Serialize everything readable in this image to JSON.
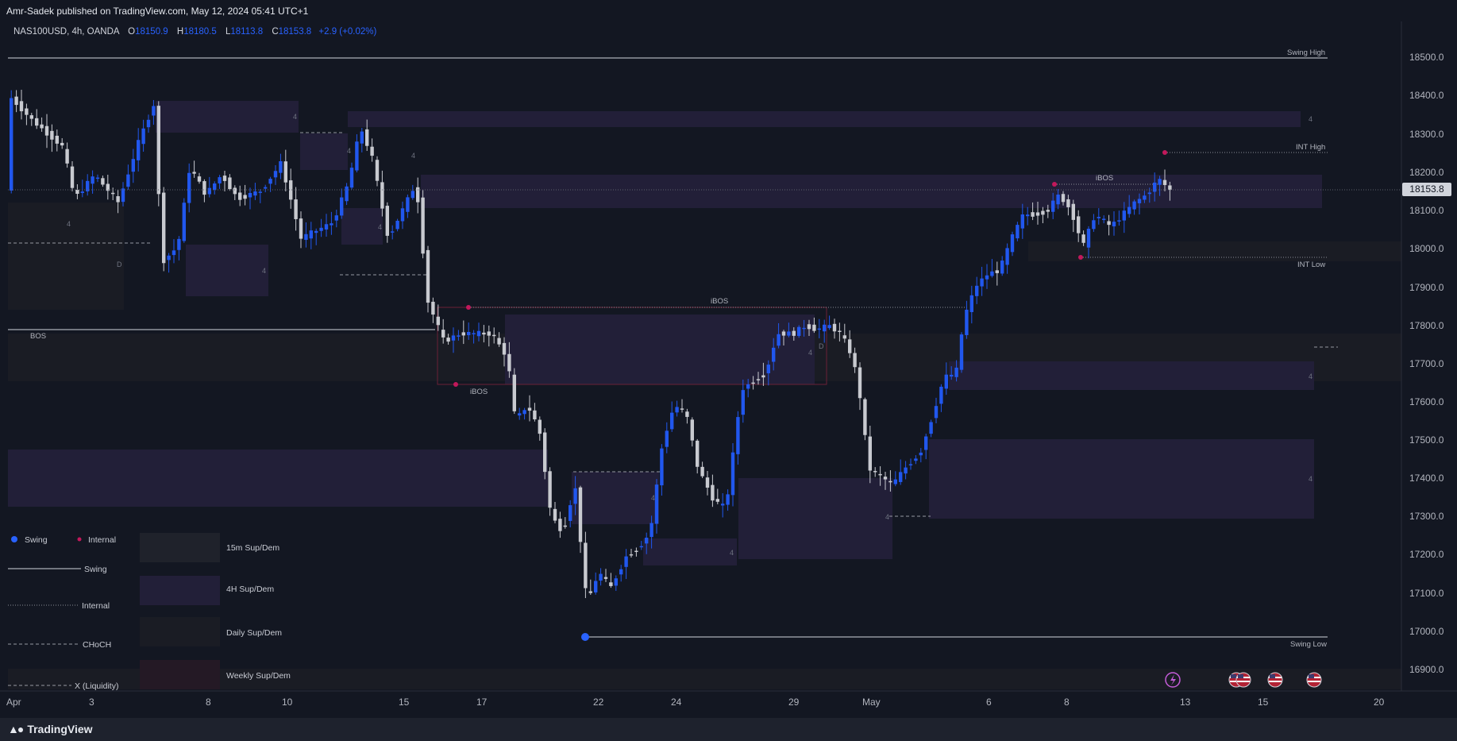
{
  "publisher_line": "Amr-Sadek published on TradingView.com, May 12, 2024 05:41 UTC+1",
  "legend": {
    "symbol": "NAS100USD, 4h, OANDA",
    "o_label": "O",
    "o_value": "18150.9",
    "h_label": "H",
    "h_value": "18180.5",
    "l_label": "L",
    "l_value": "18113.8",
    "c_label": "C",
    "c_value": "18153.8",
    "change": "+2.9 (+0.02%)"
  },
  "price_axis": {
    "ticks": [
      "18500.0",
      "18400.0",
      "18300.0",
      "18200.0",
      "18100.0",
      "18000.0",
      "17900.0",
      "17800.0",
      "17700.0",
      "17600.0",
      "17500.0",
      "17400.0",
      "17300.0",
      "17200.0",
      "17100.0",
      "17000.0",
      "16900.0"
    ],
    "current_price": "18153.8"
  },
  "time_axis": {
    "labels": [
      "Apr",
      "3",
      "8",
      "10",
      "15",
      "17",
      "22",
      "24",
      "29",
      "May",
      "6",
      "8",
      "13",
      "15",
      "20"
    ]
  },
  "annotations": {
    "swing_high": "Swing High",
    "swing_low": "Swing Low",
    "int_high": "INT High",
    "int_low": "INT Low",
    "bos": "BOS",
    "ibos_mid": "iBOS",
    "ibos_low": "iBOS",
    "ibos_right": "iBOS",
    "zone_4": "4",
    "zone_d": "D"
  },
  "indicator_key": {
    "swing_dot": "Swing",
    "internal_dot": "Internal",
    "swing_line": "Swing",
    "internal_line": "Internal",
    "choch_line": "CHoCH",
    "liquidity_line": "X (Liquidity)",
    "box_15m": "15m Sup/Dem",
    "box_4h": "4H Sup/Dem",
    "box_daily": "Daily Sup/Dem",
    "box_weekly": "Weekly Sup/Dem"
  },
  "colors": {
    "background": "#131722",
    "bull_candle": "#2157ee",
    "bear_candle": "#c8cad0",
    "swing_dot": "#2962ff",
    "internal_dot": "#c2185b",
    "zone_4h": "#221f38",
    "zone_daily": "#1a1c24"
  },
  "icons": {
    "lightning": "lightning-icon",
    "flag": "us-flag-icon"
  },
  "footer": {
    "brand": "TradingView"
  }
}
